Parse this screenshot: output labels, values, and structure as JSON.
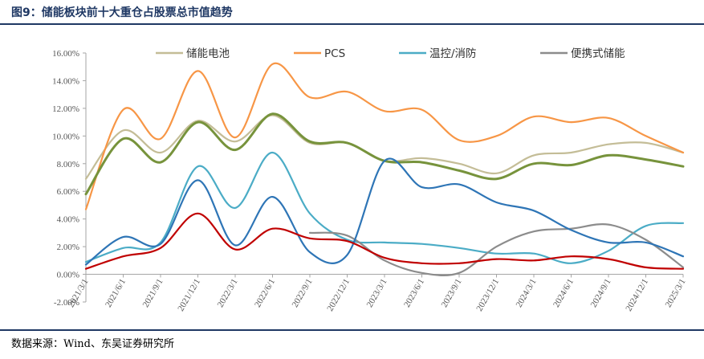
{
  "figure_title": "图9：储能板块前十大重仓占股票总市值趋势",
  "source_note": "数据来源：Wind、东吴证券研究所",
  "chart_data": {
    "type": "line",
    "title": "",
    "xlabel": "",
    "ylabel": "",
    "ylim": [
      -0.02,
      0.16
    ],
    "y_ticks": [
      "-2.00%",
      "0.00%",
      "2.00%",
      "4.00%",
      "6.00%",
      "8.00%",
      "10.00%",
      "12.00%",
      "14.00%",
      "16.00%"
    ],
    "y_tick_values": [
      -0.02,
      0.0,
      0.02,
      0.04,
      0.06,
      0.08,
      0.1,
      0.12,
      0.14,
      0.16
    ],
    "x_tick_labels": [
      "2021/3/1",
      "2021/6/1",
      "2021/9/1",
      "2021/12/1",
      "2022/3/1",
      "2022/6/1",
      "2022/9/1",
      "2022/12/1",
      "2023/3/1",
      "2023/6/1",
      "2023/9/1",
      "2023/12/1",
      "2024/3/1",
      "2024/6/1",
      "2024/9/1",
      "2024/12/1",
      "2025/3/1"
    ],
    "legend_position": "top",
    "grid": false,
    "series": [
      {
        "name": "储能电池",
        "color": "#c4bd97",
        "values": [
          0.069,
          0.104,
          0.088,
          0.111,
          0.096,
          0.115,
          0.095,
          0.095,
          0.082,
          0.084,
          0.08,
          0.073,
          0.086,
          0.088,
          0.094,
          0.095,
          0.088
        ]
      },
      {
        "name": "PCS",
        "color": "#f79646",
        "values": [
          0.047,
          0.119,
          0.098,
          0.147,
          0.099,
          0.152,
          0.128,
          0.132,
          0.118,
          0.119,
          0.097,
          0.1,
          0.114,
          0.11,
          0.113,
          0.1,
          0.088
        ]
      },
      {
        "name": "温控/消防",
        "color": "#4bacc6",
        "values": [
          0.009,
          0.019,
          0.023,
          0.078,
          0.048,
          0.088,
          0.044,
          0.025,
          0.023,
          0.022,
          0.019,
          0.015,
          0.015,
          0.008,
          0.017,
          0.035,
          0.037
        ]
      },
      {
        "name": "便携式储能",
        "color": "#8c8c8c",
        "values": [
          null,
          null,
          null,
          null,
          null,
          null,
          0.03,
          0.028,
          0.01,
          0.001,
          0.001,
          0.02,
          0.031,
          0.033,
          0.036,
          0.025,
          0.005
        ]
      },
      {
        "name": "",
        "color": "#77933c",
        "values": [
          0.058,
          0.098,
          0.081,
          0.11,
          0.09,
          0.116,
          0.096,
          0.095,
          0.082,
          0.081,
          0.075,
          0.069,
          0.08,
          0.079,
          0.086,
          0.083,
          0.078
        ]
      },
      {
        "name": "",
        "color": "#2e75b6",
        "values": [
          0.007,
          0.027,
          0.022,
          0.068,
          0.021,
          0.056,
          0.016,
          0.014,
          0.082,
          0.063,
          0.065,
          0.052,
          0.046,
          0.032,
          0.023,
          0.023,
          0.013
        ]
      },
      {
        "name": "",
        "color": "#c00000",
        "values": [
          0.004,
          0.013,
          0.019,
          0.044,
          0.018,
          0.033,
          0.026,
          0.024,
          0.012,
          0.008,
          0.008,
          0.011,
          0.01,
          0.013,
          0.011,
          0.005,
          0.004
        ]
      }
    ]
  }
}
